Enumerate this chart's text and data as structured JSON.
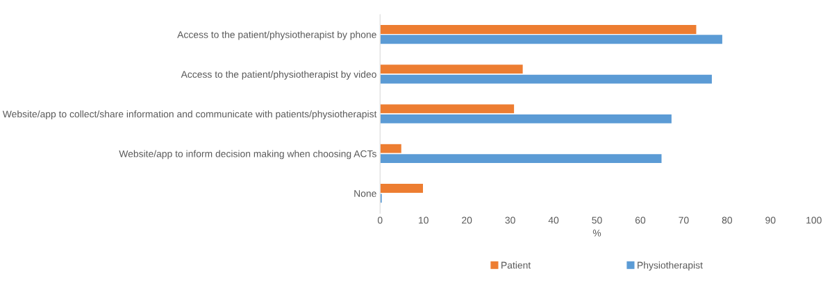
{
  "chart_data": {
    "type": "bar",
    "orientation": "horizontal",
    "xlabel": "%",
    "categories": [
      "Access to the patient/physiotherapist by phone",
      "Access to the patient/physiotherapist by video",
      "Website/app to collect/share information and communicate with patients/physiotherapist",
      "Website/app to inform decision making when choosing ACTs",
      "None"
    ],
    "series": [
      {
        "name": "Patient",
        "color": "#ed7d31",
        "values": [
          73,
          33,
          31,
          5,
          10
        ]
      },
      {
        "name": "Physiotherapist",
        "color": "#5b9bd5",
        "values": [
          79,
          76.6,
          67.3,
          65,
          0.5
        ]
      }
    ],
    "xlim": [
      0,
      100
    ],
    "xticks": [
      0,
      10,
      20,
      30,
      40,
      50,
      60,
      70,
      80,
      90,
      100
    ],
    "grid": false,
    "legend": "bottom"
  }
}
